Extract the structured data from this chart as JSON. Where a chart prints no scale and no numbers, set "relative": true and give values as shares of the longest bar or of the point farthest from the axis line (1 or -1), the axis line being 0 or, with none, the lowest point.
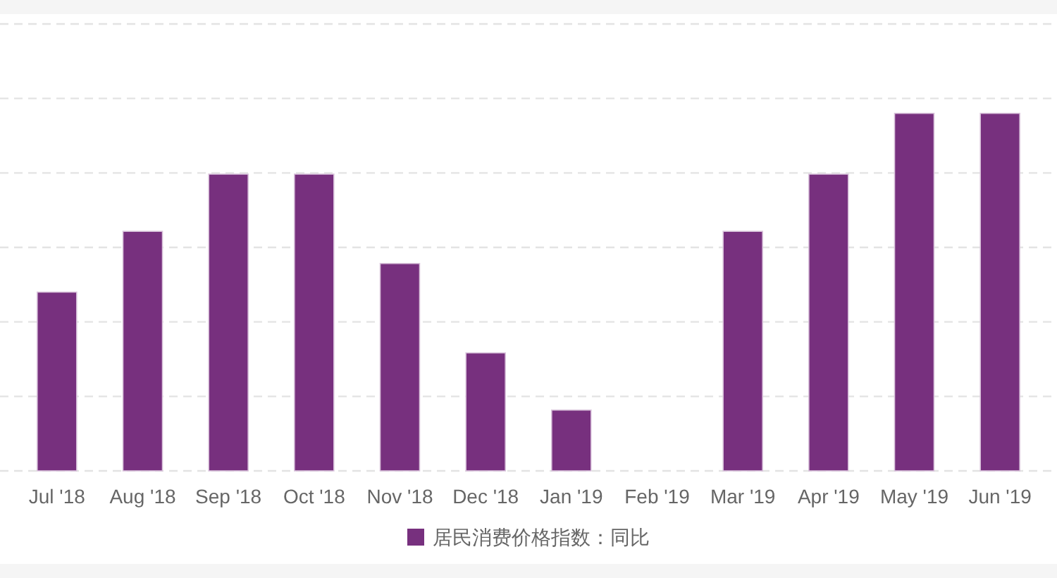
{
  "chart_data": {
    "type": "bar",
    "relative": true,
    "categories": [
      "Jul '18",
      "Aug '18",
      "Sep '18",
      "Oct '18",
      "Nov '18",
      "Dec '18",
      "Jan '19",
      "Feb '19",
      "Mar '19",
      "Apr '19",
      "May '19",
      "Jun '19"
    ],
    "series": [
      {
        "name": "居民消费价格指数：同比",
        "color": "#77307e",
        "values": [
          0.5,
          0.67,
          0.83,
          0.83,
          0.58,
          0.33,
          0.17,
          0,
          0.67,
          0.83,
          1,
          1
        ]
      }
    ],
    "grid": "y",
    "legend": "bottom"
  }
}
